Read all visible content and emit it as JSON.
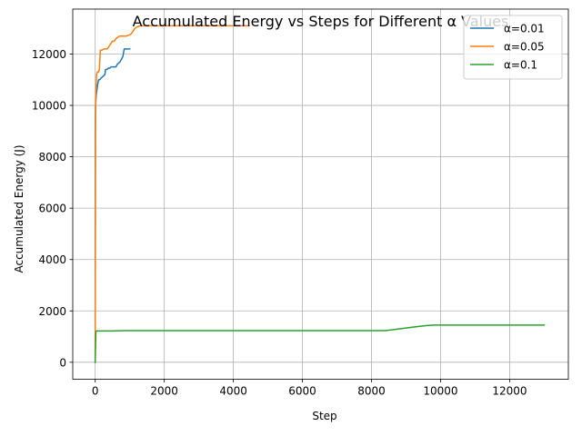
{
  "chart_data": {
    "type": "line",
    "title": "Accumulated Energy vs Steps for Different α Values",
    "xlabel": "Step",
    "ylabel": "Accumulated Energy (J)",
    "xlim": [
      -650,
      13700
    ],
    "ylim": [
      -660,
      13750
    ],
    "xticks": [
      0,
      2000,
      4000,
      6000,
      8000,
      10000,
      12000
    ],
    "yticks": [
      0,
      2000,
      4000,
      6000,
      8000,
      10000,
      12000
    ],
    "xtick_labels": [
      "0",
      "2000",
      "4000",
      "6000",
      "8000",
      "10000",
      "12000"
    ],
    "ytick_labels": [
      "0",
      "2000",
      "4000",
      "6000",
      "8000",
      "10000",
      "12000"
    ],
    "grid": true,
    "legend_position": "top-right",
    "series": [
      {
        "name": "α=0.01",
        "color": "#1f77b4",
        "x": [
          0,
          5,
          10,
          20,
          30,
          50,
          70,
          100,
          130,
          160,
          200,
          240,
          280,
          300,
          340,
          380,
          420,
          460,
          500,
          540,
          580,
          600,
          640,
          680,
          720,
          760,
          800,
          840,
          880,
          920,
          960,
          1000
        ],
        "y": [
          0,
          9600,
          10000,
          10200,
          10400,
          10600,
          10800,
          11000,
          11000,
          11050,
          11100,
          11150,
          11200,
          11400,
          11400,
          11450,
          11450,
          11500,
          11500,
          11500,
          11500,
          11500,
          11600,
          11650,
          11700,
          11800,
          11900,
          12200,
          12200,
          12200,
          12200,
          12200
        ]
      },
      {
        "name": "α=0.05",
        "color": "#ff7f0e",
        "x": [
          0,
          10,
          20,
          40,
          60,
          80,
          100,
          120,
          150,
          200,
          250,
          300,
          350,
          400,
          450,
          500,
          550,
          600,
          650,
          700,
          800,
          900,
          1000,
          1050,
          1100,
          1150,
          1200,
          1300,
          1400,
          1600,
          2000,
          3000,
          4000,
          4450
        ],
        "y": [
          0,
          9500,
          10500,
          11200,
          11300,
          11300,
          11300,
          11400,
          12150,
          12150,
          12200,
          12200,
          12200,
          12300,
          12400,
          12500,
          12500,
          12600,
          12650,
          12700,
          12700,
          12700,
          12750,
          12800,
          12900,
          13000,
          13050,
          13100,
          13100,
          13100,
          13100,
          13100,
          13100,
          13100
        ]
      },
      {
        "name": "α=0.1",
        "color": "#2ca02c",
        "x": [
          0,
          20,
          40,
          60,
          100,
          500,
          900,
          1000,
          2000,
          4000,
          6000,
          8000,
          8400,
          8800,
          9200,
          9600,
          9800,
          10000,
          11000,
          12000,
          13000
        ],
        "y": [
          0,
          1200,
          1220,
          1220,
          1220,
          1220,
          1230,
          1230,
          1230,
          1230,
          1230,
          1230,
          1230,
          1300,
          1370,
          1430,
          1450,
          1450,
          1450,
          1450,
          1450
        ]
      }
    ]
  }
}
